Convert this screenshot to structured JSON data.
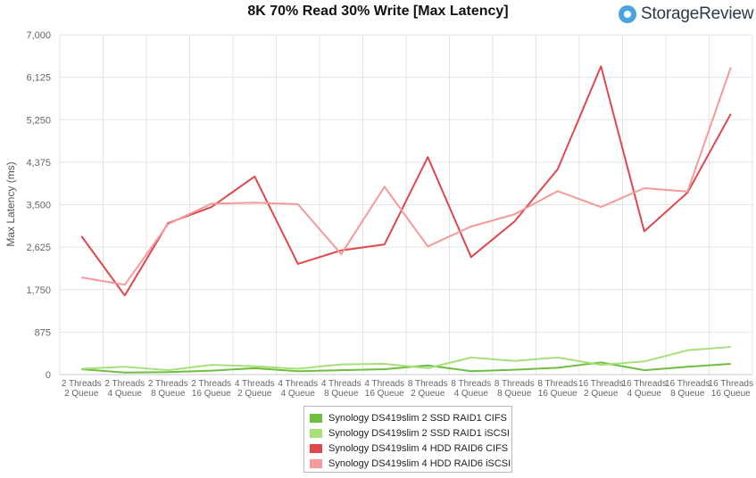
{
  "brand": {
    "name": "StorageReview",
    "icon": "storagereview-logo-icon"
  },
  "chart_data": {
    "type": "line",
    "title": "8K 70% Read 30% Write [Max Latency]",
    "xlabel": "",
    "ylabel": "Max Latency  (ms)",
    "ylim": [
      0,
      7000
    ],
    "yticks": [
      "0",
      "875",
      "1,750",
      "2,625",
      "3,500",
      "4,375",
      "5,250",
      "6,125",
      "7,000"
    ],
    "ytick_values": [
      0,
      875,
      1750,
      2625,
      3500,
      4375,
      5250,
      6125,
      7000
    ],
    "grid": true,
    "legend_position": "bottom",
    "categories": [
      [
        "2 Threads",
        "2 Queue"
      ],
      [
        "2 Threads",
        "4 Queue"
      ],
      [
        "2 Threads",
        "8 Queue"
      ],
      [
        "2 Threads",
        "16 Queue"
      ],
      [
        "4 Threads",
        "2 Queue"
      ],
      [
        "4 Threads",
        "4 Queue"
      ],
      [
        "4 Threads",
        "8 Queue"
      ],
      [
        "4 Threads",
        "16 Queue"
      ],
      [
        "8 Threads",
        "2 Queue"
      ],
      [
        "8 Threads",
        "4 Queue"
      ],
      [
        "8 Threads",
        "8 Queue"
      ],
      [
        "8 Threads",
        "16 Queue"
      ],
      [
        "16 Threads",
        "2 Queue"
      ],
      [
        "16 Threads",
        "4 Queue"
      ],
      [
        "16 Threads",
        "8 Queue"
      ],
      [
        "16 Threads",
        "16 Queue"
      ]
    ],
    "series": [
      {
        "name": "Synology DS419slim 2 SSD RAID1 CIFS",
        "color": "#6dbf3e",
        "values": [
          110,
          40,
          50,
          80,
          130,
          70,
          90,
          110,
          190,
          70,
          100,
          140,
          250,
          90,
          160,
          220
        ]
      },
      {
        "name": "Synology DS419slim 2 SSD RAID1 iSCSI",
        "color": "#a6e07a",
        "values": [
          120,
          160,
          90,
          200,
          170,
          120,
          210,
          220,
          130,
          350,
          280,
          350,
          200,
          270,
          500,
          570
        ]
      },
      {
        "name": "Synology DS419slim 4 HDD RAID6 CIFS",
        "color": "#e0474c",
        "values": [
          2850,
          1630,
          3120,
          3450,
          4080,
          2280,
          2560,
          2680,
          4480,
          2420,
          3150,
          4230,
          6350,
          2950,
          3750,
          5370
        ]
      },
      {
        "name": "Synology DS419slim 4 HDD RAID6 iSCSI",
        "color": "#f59a9a",
        "values": [
          2000,
          1850,
          3100,
          3520,
          3540,
          3510,
          2480,
          3870,
          2640,
          3050,
          3300,
          3780,
          3450,
          3840,
          3770,
          6330
        ]
      }
    ]
  }
}
